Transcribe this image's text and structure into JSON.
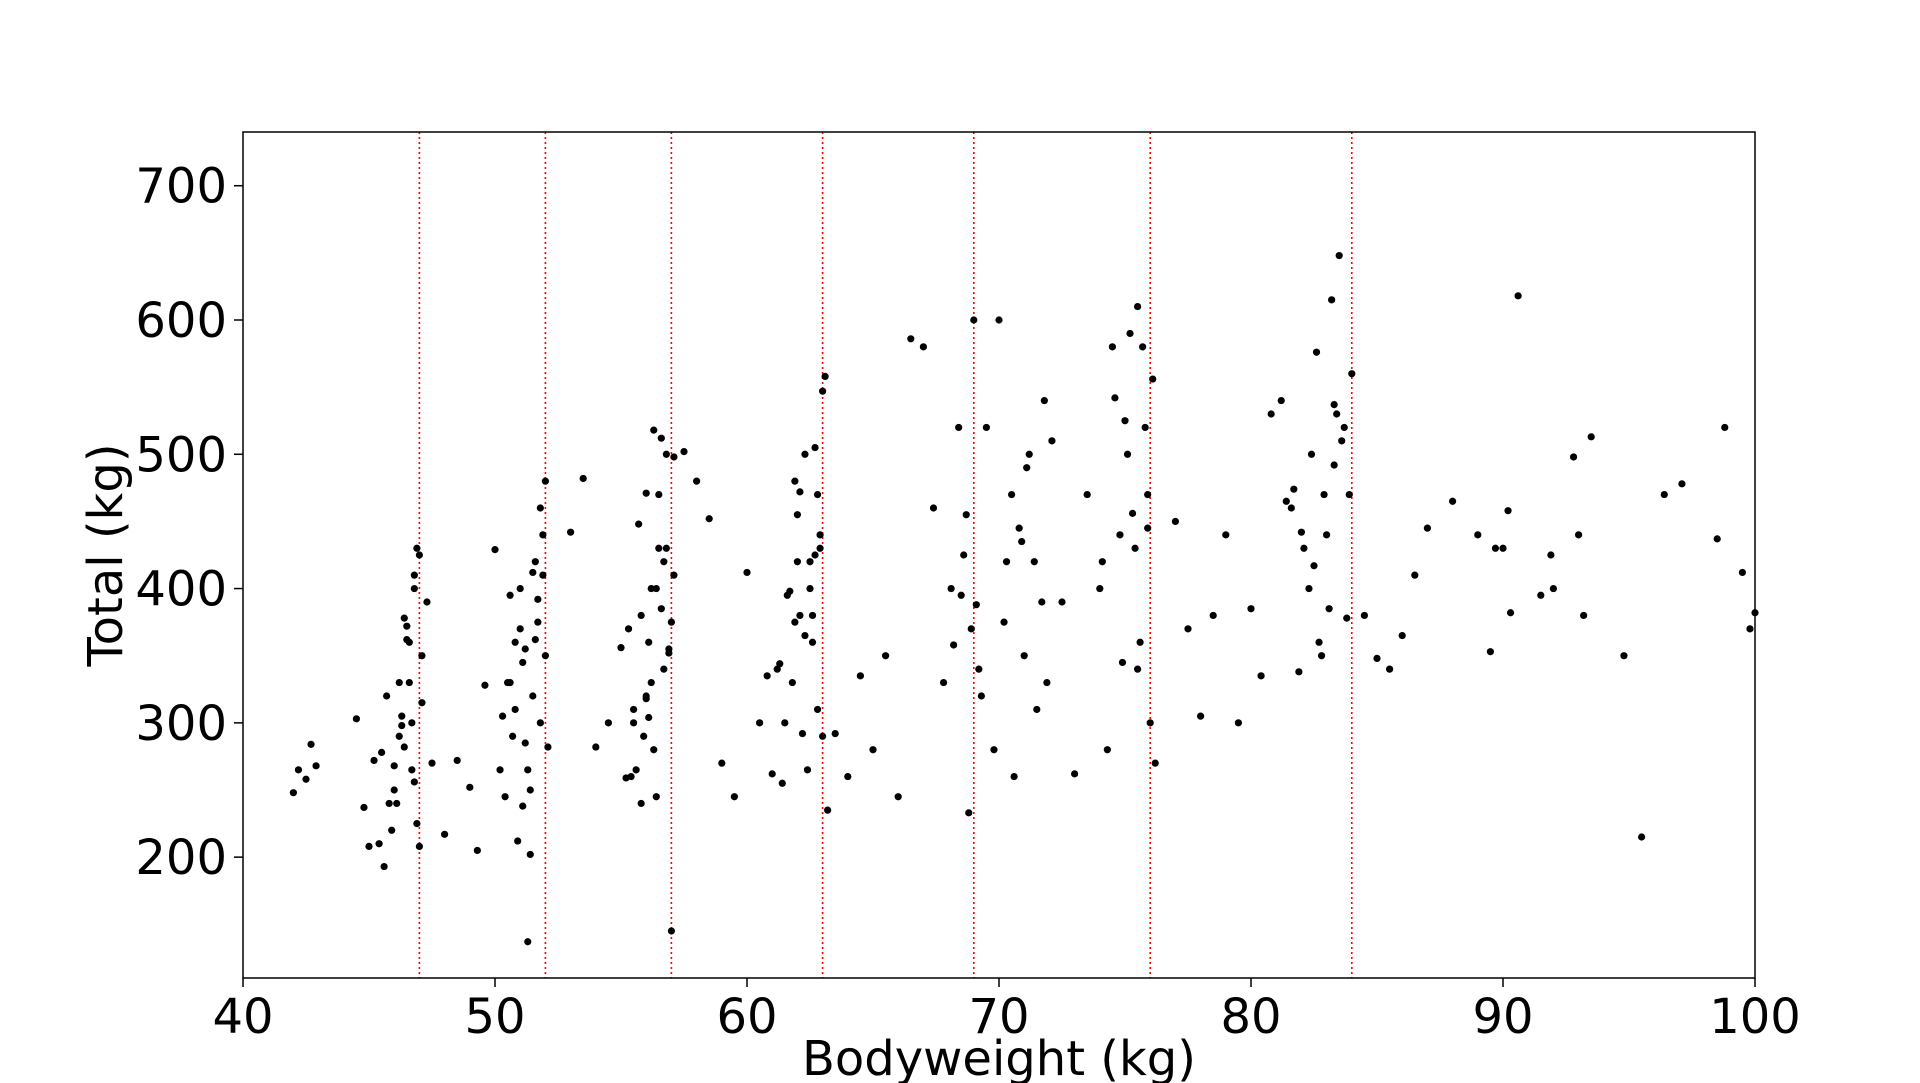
{
  "chart_data": {
    "type": "scatter",
    "title": "",
    "xlabel": "Bodyweight (kg)",
    "ylabel": "Total (kg)",
    "xlim": [
      40,
      100
    ],
    "ylim": [
      110,
      740
    ],
    "xticks": [
      40,
      50,
      60,
      70,
      80,
      90,
      100
    ],
    "yticks": [
      200,
      300,
      400,
      500,
      600,
      700
    ],
    "grid": false,
    "legend": "none",
    "marker_color": "#000000",
    "reference_lines": {
      "orientation": "vertical",
      "style": "dotted",
      "color": "#ff0000",
      "x": [
        47,
        52,
        57,
        63,
        69,
        76,
        84
      ]
    },
    "series": [
      {
        "x": [
          42.0,
          42.2,
          42.5,
          42.7,
          42.9,
          44.5,
          44.8,
          45.0,
          45.2,
          45.4,
          45.5,
          45.6,
          45.8,
          46.0,
          46.2,
          46.4,
          46.6,
          46.7,
          46.8,
          46.9,
          47.0,
          47.1,
          47.3,
          46.3,
          46.5,
          46.1,
          45.9,
          46.7,
          47.0,
          46.6,
          46.8,
          46.2,
          45.7,
          46.4,
          46.9,
          46.5,
          47.1,
          46.0,
          46.3,
          46.8,
          47.5,
          48.0,
          48.5,
          49.0,
          49.3,
          49.6,
          50.0,
          50.3,
          50.6,
          50.8,
          51.0,
          51.2,
          51.4,
          51.6,
          51.8,
          51.9,
          52.0,
          52.1,
          51.7,
          51.5,
          51.3,
          51.1,
          50.9,
          50.7,
          50.5,
          50.2,
          51.0,
          51.4,
          51.8,
          52.0,
          51.6,
          51.2,
          50.8,
          51.9,
          51.5,
          51.1,
          50.6,
          50.4,
          51.7,
          51.3,
          53.0,
          53.5,
          54.0,
          54.5,
          55.0,
          55.2,
          55.5,
          55.8,
          56.0,
          56.2,
          56.4,
          56.6,
          56.8,
          57.0,
          57.1,
          56.9,
          56.7,
          56.5,
          56.3,
          56.1,
          55.9,
          55.7,
          55.4,
          55.6,
          56.0,
          56.4,
          56.8,
          57.0,
          56.2,
          55.8,
          56.6,
          56.3,
          56.9,
          56.1,
          55.5,
          56.7,
          57.1,
          56.5,
          55.3,
          56.0,
          57.5,
          58.0,
          58.5,
          59.0,
          59.5,
          60.0,
          60.5,
          60.8,
          61.0,
          61.3,
          61.6,
          61.9,
          62.1,
          62.3,
          62.5,
          62.7,
          62.9,
          63.0,
          63.1,
          62.8,
          62.6,
          62.4,
          62.2,
          62.0,
          61.8,
          61.5,
          61.2,
          62.5,
          62.9,
          62.3,
          61.7,
          62.7,
          62.1,
          63.0,
          61.4,
          62.6,
          62.0,
          62.8,
          61.9,
          63.2,
          63.5,
          64.0,
          64.5,
          65.0,
          65.5,
          66.0,
          66.5,
          67.0,
          67.4,
          67.8,
          68.1,
          68.4,
          68.7,
          68.9,
          69.0,
          69.2,
          69.5,
          69.8,
          70.0,
          70.3,
          70.6,
          70.9,
          71.1,
          71.4,
          71.7,
          71.9,
          72.1,
          68.8,
          68.5,
          68.2,
          69.1,
          70.5,
          71.0,
          71.5,
          70.2,
          71.8,
          68.6,
          69.3,
          70.8,
          71.2,
          72.5,
          73.0,
          73.5,
          74.0,
          74.3,
          74.6,
          74.9,
          75.1,
          75.3,
          75.5,
          75.7,
          75.9,
          76.0,
          76.2,
          75.8,
          75.4,
          74.8,
          75.6,
          75.0,
          74.5,
          75.2,
          75.9,
          74.1,
          75.5,
          76.1,
          77.0,
          77.5,
          78.0,
          78.5,
          79.0,
          79.5,
          80.0,
          80.4,
          80.8,
          81.2,
          81.6,
          82.0,
          82.3,
          82.6,
          82.9,
          83.1,
          83.3,
          83.5,
          83.7,
          83.9,
          84.0,
          83.2,
          82.8,
          82.4,
          81.9,
          83.6,
          83.4,
          82.1,
          81.4,
          83.0,
          83.8,
          82.5,
          81.7,
          83.3,
          82.7,
          84.5,
          85.0,
          85.5,
          86.0,
          86.5,
          87.0,
          88.0,
          89.0,
          89.5,
          90.0,
          90.3,
          90.6,
          91.5,
          91.9,
          92.8,
          93.2,
          93.5,
          94.8,
          95.5,
          96.4,
          97.1,
          98.5,
          98.8,
          99.5,
          99.8,
          100.0,
          89.7,
          90.2,
          93.0,
          92.0
        ],
        "y": [
          248,
          265,
          258,
          284,
          268,
          303,
          237,
          208,
          272,
          210,
          278,
          193,
          240,
          268,
          290,
          378,
          330,
          300,
          256,
          225,
          208,
          350,
          390,
          305,
          372,
          240,
          220,
          265,
          425,
          360,
          410,
          330,
          320,
          282,
          430,
          362,
          315,
          250,
          298,
          400,
          270,
          217,
          272,
          252,
          205,
          328,
          429,
          305,
          330,
          360,
          400,
          285,
          250,
          420,
          460,
          440,
          350,
          282,
          375,
          412,
          265,
          238,
          212,
          290,
          330,
          265,
          370,
          202,
          300,
          480,
          362,
          355,
          310,
          410,
          320,
          345,
          395,
          245,
          392,
          137,
          442,
          482,
          282,
          300,
          356,
          259,
          310,
          380,
          471,
          330,
          400,
          512,
          430,
          375,
          498,
          355,
          420,
          470,
          518,
          304,
          290,
          448,
          260,
          265,
          320,
          245,
          500,
          145,
          400,
          240,
          385,
          280,
          352,
          360,
          300,
          340,
          410,
          430,
          370,
          318,
          502,
          480,
          452,
          270,
          245,
          412,
          300,
          335,
          262,
          344,
          395,
          480,
          472,
          365,
          420,
          505,
          430,
          547,
          558,
          310,
          380,
          265,
          292,
          455,
          330,
          300,
          340,
          400,
          440,
          500,
          398,
          425,
          380,
          290,
          255,
          360,
          420,
          470,
          375,
          235,
          292,
          260,
          335,
          280,
          350,
          245,
          586,
          580,
          460,
          330,
          400,
          520,
          455,
          370,
          600,
          340,
          520,
          280,
          600,
          420,
          260,
          435,
          490,
          420,
          390,
          330,
          510,
          233,
          395,
          358,
          388,
          470,
          350,
          310,
          375,
          540,
          425,
          320,
          445,
          500,
          390,
          262,
          470,
          400,
          280,
          542,
          345,
          500,
          456,
          610,
          580,
          445,
          300,
          270,
          520,
          430,
          440,
          360,
          525,
          580,
          590,
          470,
          420,
          340,
          556,
          450,
          370,
          305,
          380,
          440,
          300,
          385,
          335,
          530,
          540,
          460,
          442,
          400,
          576,
          470,
          385,
          492,
          648,
          520,
          470,
          560,
          615,
          350,
          500,
          338,
          510,
          530,
          430,
          465,
          440,
          378,
          417,
          474,
          537,
          360,
          380,
          348,
          340,
          365,
          410,
          445,
          465,
          440,
          353,
          430,
          382,
          618,
          395,
          425,
          498,
          380,
          513,
          350,
          215,
          470,
          478,
          437,
          520,
          412,
          370,
          382,
          430,
          458,
          440,
          400
        ]
      }
    ]
  }
}
